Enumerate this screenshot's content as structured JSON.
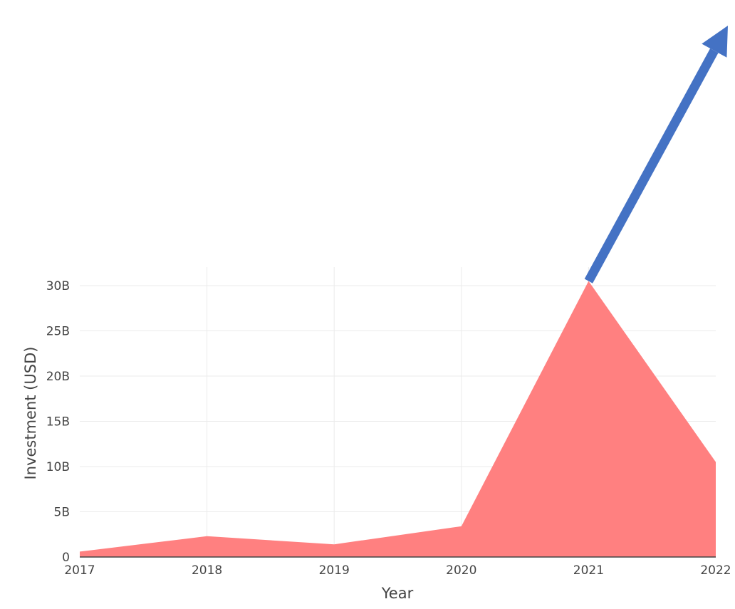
{
  "chart_data": {
    "type": "area",
    "title": "",
    "xlabel": "Year",
    "ylabel": "Investment (USD)",
    "x": [
      2017,
      2018,
      2019,
      2020,
      2021,
      2022
    ],
    "x_tick_labels": [
      "2017",
      "2018",
      "2019",
      "2020",
      "2021",
      "2022"
    ],
    "series": [
      {
        "values": [
          0.6,
          2.3,
          1.4,
          3.4,
          30.5,
          10.5
        ],
        "color": "#ff8080"
      }
    ],
    "y_ticks": [
      0,
      5,
      10,
      15,
      20,
      25,
      30
    ],
    "y_tick_labels": [
      "0",
      "5B",
      "10B",
      "15B",
      "20B",
      "25B",
      "30B"
    ],
    "ylim": [
      0,
      32
    ],
    "xlim": [
      2017,
      2022
    ],
    "grid": true,
    "annotations": [
      {
        "type": "arrow",
        "from": {
          "x": 2021,
          "y": 30.5
        },
        "direction": "up-right",
        "color": "#4472c4"
      }
    ]
  }
}
